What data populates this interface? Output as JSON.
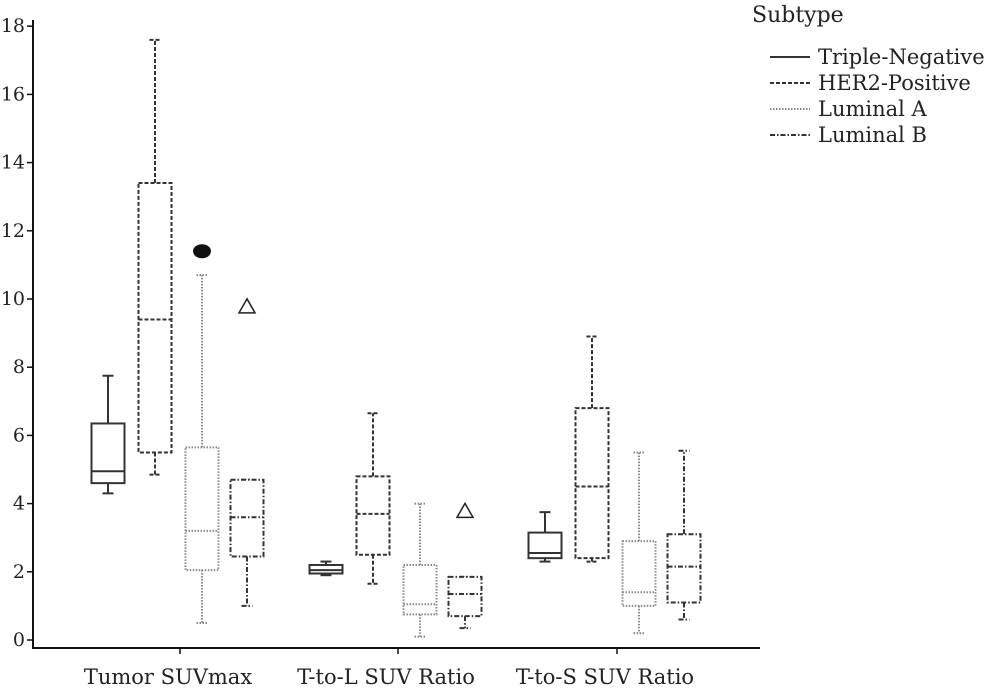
{
  "chart_data": {
    "type": "box",
    "title": "",
    "xlabel": "",
    "ylabel": "",
    "ylim": [
      0,
      18
    ],
    "yticks": [
      0,
      2,
      4,
      6,
      8,
      10,
      12,
      14,
      16,
      18
    ],
    "grid": false,
    "legend_position": "top-right",
    "legend_title": "Subtype",
    "categories": [
      "Tumor SUVmax",
      "T-to-L SUV Ratio",
      "T-to-S SUV Ratio"
    ],
    "series": [
      {
        "name": "Triple-Negative",
        "line_style": "solid",
        "color": "#333333",
        "boxes": [
          {
            "min": 4.3,
            "q1": 4.6,
            "median": 4.95,
            "q3": 6.35,
            "max": 7.75,
            "outliers": []
          },
          {
            "min": 1.9,
            "q1": 1.95,
            "median": 2.05,
            "q3": 2.2,
            "max": 2.3,
            "outliers": []
          },
          {
            "min": 2.3,
            "q1": 2.4,
            "median": 2.55,
            "q3": 3.15,
            "max": 3.75,
            "outliers": []
          }
        ]
      },
      {
        "name": "HER2-Positive",
        "line_style": "dashed",
        "color": "#333333",
        "boxes": [
          {
            "min": 4.85,
            "q1": 5.5,
            "median": 9.4,
            "q3": 13.4,
            "max": 17.6,
            "outliers": []
          },
          {
            "min": 1.65,
            "q1": 2.5,
            "median": 3.7,
            "q3": 4.8,
            "max": 6.65,
            "outliers": []
          },
          {
            "min": 2.3,
            "q1": 2.4,
            "median": 4.5,
            "q3": 6.8,
            "max": 8.9,
            "outliers": []
          }
        ]
      },
      {
        "name": "Luminal A",
        "line_style": "dotted",
        "color": "#888888",
        "boxes": [
          {
            "min": 0.5,
            "q1": 2.05,
            "median": 3.2,
            "q3": 5.65,
            "max": 10.7,
            "outliers": [
              {
                "value": 11.4,
                "marker": "filled-circle"
              }
            ]
          },
          {
            "min": 0.1,
            "q1": 0.75,
            "median": 1.05,
            "q3": 2.2,
            "max": 4.0,
            "outliers": []
          },
          {
            "min": 0.2,
            "q1": 1.0,
            "median": 1.4,
            "q3": 2.9,
            "max": 5.5,
            "outliers": []
          }
        ]
      },
      {
        "name": "Luminal B",
        "line_style": "dash-dot",
        "color": "#333333",
        "boxes": [
          {
            "min": 1.0,
            "q1": 2.45,
            "median": 3.6,
            "q3": 4.7,
            "max": 4.7,
            "outliers": [
              {
                "value": 9.8,
                "marker": "triangle"
              }
            ]
          },
          {
            "min": 0.35,
            "q1": 0.7,
            "median": 1.35,
            "q3": 1.85,
            "max": 1.85,
            "outliers": [
              {
                "value": 3.8,
                "marker": "triangle"
              }
            ]
          },
          {
            "min": 0.6,
            "q1": 1.1,
            "median": 2.15,
            "q3": 3.1,
            "max": 5.55,
            "outliers": []
          }
        ]
      }
    ]
  }
}
